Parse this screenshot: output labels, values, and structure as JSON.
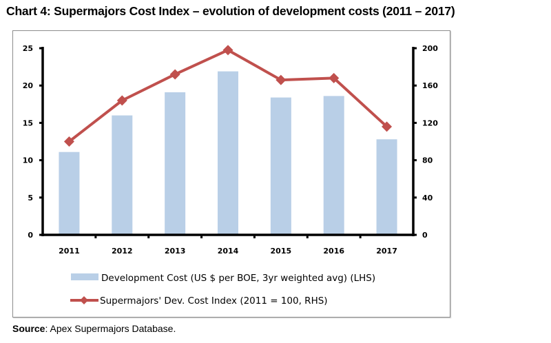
{
  "title": "Chart 4: Supermajors Cost Index – evolution of development costs (2011 – 2017)",
  "source": {
    "label": "Source",
    "text": ": Apex Supermajors Database."
  },
  "chart_data": {
    "type": "bar",
    "title": "Chart 4: Supermajors Cost Index – evolution of development costs (2011 – 2017)",
    "categories": [
      "2011",
      "2012",
      "2013",
      "2014",
      "2015",
      "2016",
      "2017"
    ],
    "series": [
      {
        "name": "Development Cost (US $ per BOE, 3yr weighted avg) (LHS)",
        "type": "bar",
        "axis": "left",
        "color": "#b9cfe7",
        "values": [
          11.1,
          16.0,
          19.1,
          21.9,
          18.4,
          18.6,
          12.8
        ]
      },
      {
        "name": "Supermajors' Dev. Cost Index (2011 = 100, RHS)",
        "type": "line",
        "axis": "right",
        "color": "#c0504d",
        "marker": "diamond",
        "values": [
          100,
          144,
          172,
          198,
          166,
          168,
          116
        ]
      }
    ],
    "y_left": {
      "min": 0,
      "max": 25,
      "ticks": [
        "0",
        "5",
        "10",
        "15",
        "20",
        "25"
      ],
      "label": ""
    },
    "y_right": {
      "min": 0,
      "max": 200,
      "ticks": [
        "0",
        "40",
        "80",
        "120",
        "160",
        "200"
      ],
      "label": ""
    },
    "xlabel": "",
    "grid": false,
    "legend_position": "bottom"
  }
}
